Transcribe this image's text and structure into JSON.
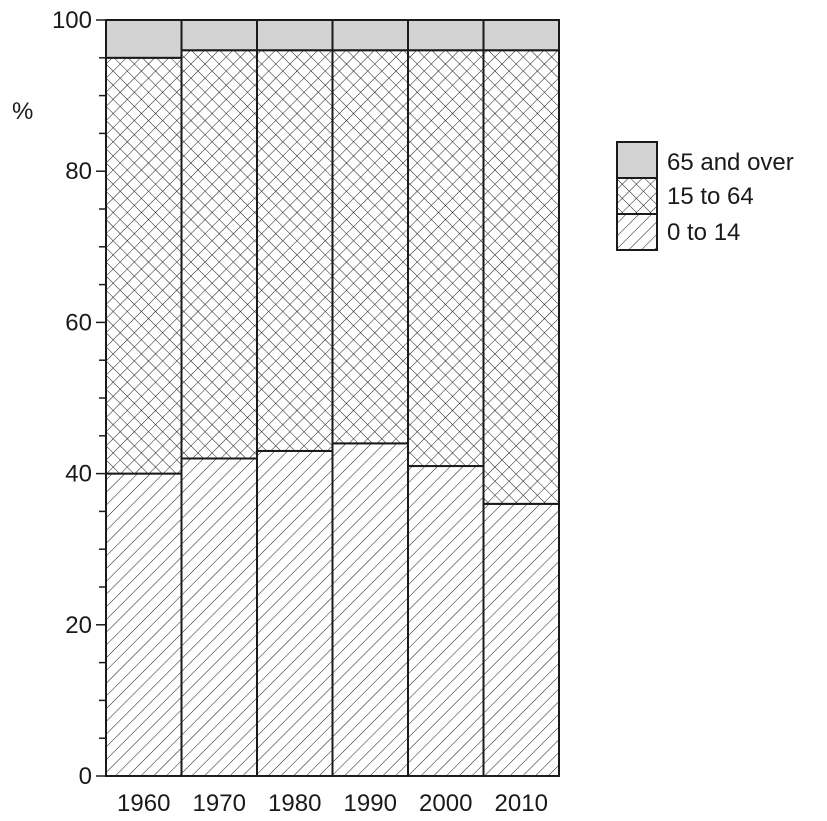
{
  "chart_data": {
    "type": "bar",
    "stacked": true,
    "categories": [
      "1960",
      "1970",
      "1980",
      "1990",
      "2000",
      "2010"
    ],
    "series": [
      {
        "name": "0 to 14",
        "values": [
          40,
          42,
          43,
          44,
          41,
          36
        ],
        "fill": "hatch-diagonal"
      },
      {
        "name": "15 to 64",
        "values": [
          55,
          54,
          53,
          52,
          55,
          60
        ],
        "fill": "cross-hatch"
      },
      {
        "name": "65 and over",
        "values": [
          5,
          4,
          4,
          4,
          4,
          4
        ],
        "fill": "#d3d3d3"
      }
    ],
    "ylabel": "%",
    "ylim": [
      0,
      100
    ],
    "yticks": [
      "0",
      "20",
      "40",
      "60",
      "80",
      "100"
    ],
    "grid": false,
    "legend": {
      "placement": "right",
      "order": [
        "65 and over",
        "15 to 64",
        "0 to 14"
      ]
    }
  }
}
